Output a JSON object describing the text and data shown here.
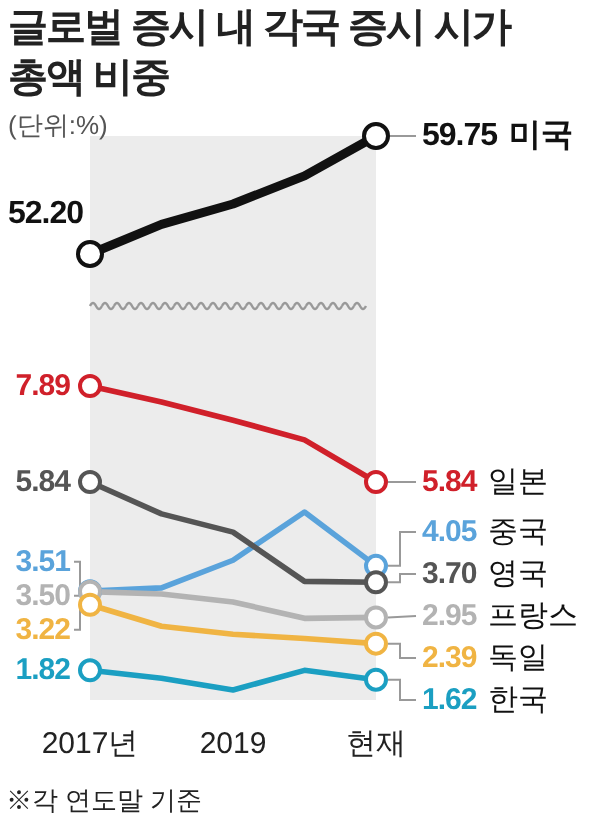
{
  "chart_data": [
    {
      "type": "line",
      "title": "글로벌 증시 내 각국 증시 시가총액 비중",
      "subtitle": "(단위:%)",
      "categories": [
        "2017년",
        null,
        "2019",
        null,
        "현재"
      ],
      "tick_labels": false,
      "bands": [
        {
          "axis": "x",
          "from": "2017년",
          "to": "현재",
          "color": "#ececec"
        }
      ],
      "series": [
        {
          "name": "미국",
          "color": "#111111",
          "values": [
            52.2,
            54.1,
            55.4,
            57.2,
            59.75
          ],
          "value_labels": [
            "52.20",
            null,
            null,
            null,
            "59.75"
          ]
        }
      ]
    },
    {
      "type": "line",
      "categories": [
        "2017년",
        null,
        "2019",
        null,
        "현재"
      ],
      "annotations": [
        "※각 연도말 기준"
      ],
      "bands": [
        {
          "axis": "x",
          "from": "2017년",
          "to": "현재",
          "color": "#ececec"
        }
      ],
      "series": [
        {
          "name": "일본",
          "color": "#d0202a",
          "values": [
            7.89,
            7.55,
            7.16,
            6.74,
            5.84
          ],
          "value_labels": [
            "7.89",
            null,
            null,
            null,
            "5.84"
          ]
        },
        {
          "name": "중국",
          "color": "#5aa3db",
          "values": [
            3.51,
            3.58,
            4.17,
            5.2,
            4.05
          ],
          "value_labels": [
            "3.51",
            null,
            null,
            null,
            "4.05"
          ]
        },
        {
          "name": "영국",
          "color": "#555555",
          "values": [
            5.84,
            5.16,
            4.77,
            3.72,
            3.7
          ],
          "value_labels": [
            "5.84",
            null,
            null,
            null,
            "3.70"
          ]
        },
        {
          "name": "프랑스",
          "color": "#b3b3b3",
          "values": [
            3.5,
            3.45,
            3.28,
            2.93,
            2.95
          ],
          "value_labels": [
            "3.50",
            null,
            null,
            null,
            "2.95"
          ]
        },
        {
          "name": "독일",
          "color": "#f0b443",
          "values": [
            3.22,
            2.76,
            2.59,
            2.5,
            2.39
          ],
          "value_labels": [
            "3.22",
            null,
            null,
            null,
            "2.39"
          ]
        },
        {
          "name": "한국",
          "color": "#1b9fc2",
          "values": [
            1.82,
            1.65,
            1.4,
            1.82,
            1.62
          ],
          "value_labels": [
            "1.82",
            null,
            null,
            null,
            "1.62"
          ]
        }
      ]
    }
  ]
}
